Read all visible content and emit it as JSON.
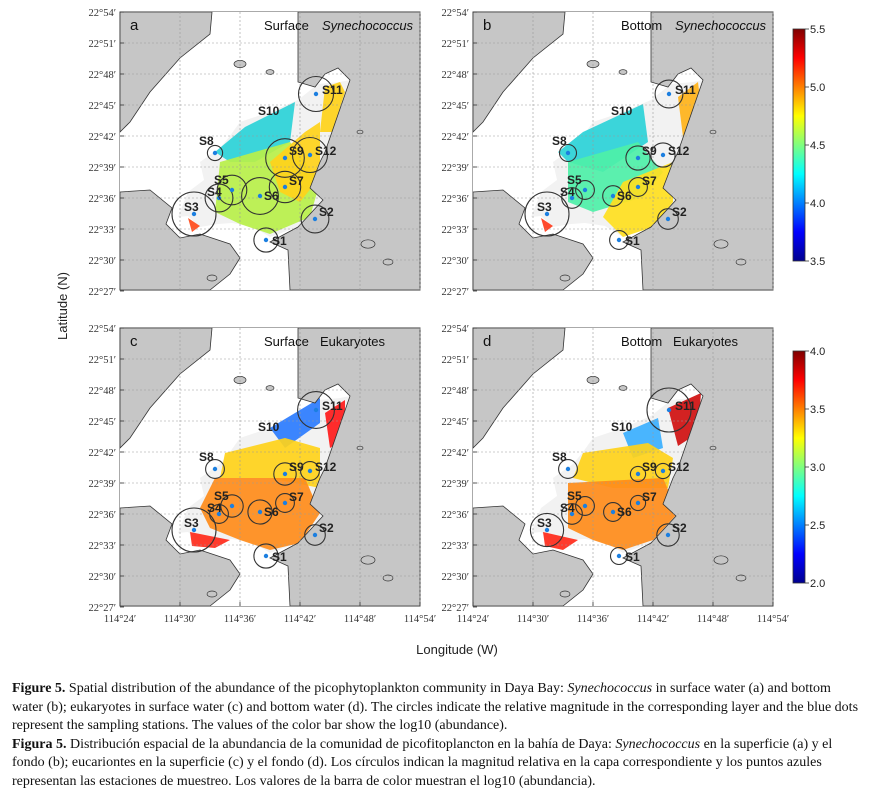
{
  "chart_data": {
    "type": "heatmap",
    "xlabel": "Longitude (W)",
    "ylabel": "Latitude (N)",
    "x_ticks": [
      "114°24′",
      "114°30′",
      "114°36′",
      "114°42′",
      "114°48′",
      "114°54′"
    ],
    "y_ticks": [
      "22°54′",
      "22°51′",
      "22°48′",
      "22°45′",
      "22°42′",
      "22°39′",
      "22°36′",
      "22°33′",
      "22°30′",
      "22°27′"
    ],
    "colorbars": [
      {
        "panels": [
          "a",
          "b"
        ],
        "range": [
          3.5,
          5.5
        ],
        "ticks": [
          "3.5",
          "4.0",
          "4.5",
          "5.0",
          "5.5"
        ]
      },
      {
        "panels": [
          "c",
          "d"
        ],
        "range": [
          2.0,
          4.0
        ],
        "ticks": [
          "2.0",
          "2.5",
          "3.0",
          "3.5",
          "4.0"
        ]
      }
    ],
    "stations": [
      "S1",
      "S2",
      "S3",
      "S4",
      "S5",
      "S6",
      "S7",
      "S8",
      "S9",
      "S10",
      "S11",
      "S12"
    ],
    "panels": [
      {
        "letter": "a",
        "layer": "Surface",
        "group": "Synechococcus",
        "circle_values": {
          "S1": 0.45,
          "S2": 0.55,
          "S3": 1.0,
          "S4": 0.55,
          "S5": 0.6,
          "S6": 0.8,
          "S7": 0.65,
          "S8": 0.2,
          "S9": 0.85,
          "S10": 0,
          "S11": 0.75,
          "S12": 0.75
        }
      },
      {
        "letter": "b",
        "layer": "Bottom",
        "group": "Synechococcus",
        "circle_values": {
          "S1": 0.3,
          "S2": 0.35,
          "S3": 1.0,
          "S4": 0.35,
          "S5": 0.3,
          "S6": 0.35,
          "S7": 0.3,
          "S8": 0.25,
          "S9": 0.45,
          "S10": 0,
          "S11": 0.55,
          "S12": 0.45
        }
      },
      {
        "letter": "c",
        "layer": "Surface",
        "group": "Eukaryotes",
        "circle_values": {
          "S1": 0.45,
          "S2": 0.35,
          "S3": 1.0,
          "S4": 0.3,
          "S5": 0.4,
          "S6": 0.45,
          "S7": 0.3,
          "S8": 0.3,
          "S9": 0.4,
          "S10": 0,
          "S11": 0.8,
          "S12": 0.3
        }
      },
      {
        "letter": "d",
        "layer": "Bottom",
        "group": "Eukaryotes",
        "circle_values": {
          "S1": 0.25,
          "S2": 0.4,
          "S3": 0.7,
          "S4": 0.35,
          "S5": 0.3,
          "S6": 0.3,
          "S7": 0.2,
          "S8": 0.3,
          "S9": 0.2,
          "S10": 0,
          "S11": 1.0,
          "S12": 0.2
        }
      }
    ]
  },
  "caption": {
    "en_label": "Figure 5.",
    "en_text_1": " Spatial distribution of the abundance of the picophytoplankton community in Daya Bay: ",
    "en_syn": "Synechococcus",
    "en_text_2": " in surface water (a) and bottom water (b); eukaryotes in surface water (c) and bottom water (d). The circles indicate the relative magnitude in the corresponding layer and the blue dots represent the sampling stations. The values of the color bar show the log10 (abundance).",
    "es_label": "Figura 5.",
    "es_text_1": " Distribución espacial de la abundancia de la comunidad de picofitoplancton en la bahía de Daya: ",
    "es_syn": "Synechococcus",
    "es_text_2": " en la superficie (a) y el fondo (b); eucariontes en la superficie (c) y el fondo (d). Los círculos indican la magnitud relativa en la capa correspondiente y los puntos azules representan las estaciones de muestreo. Los valores de la barra de color muestran el log10 (abundancia)."
  }
}
